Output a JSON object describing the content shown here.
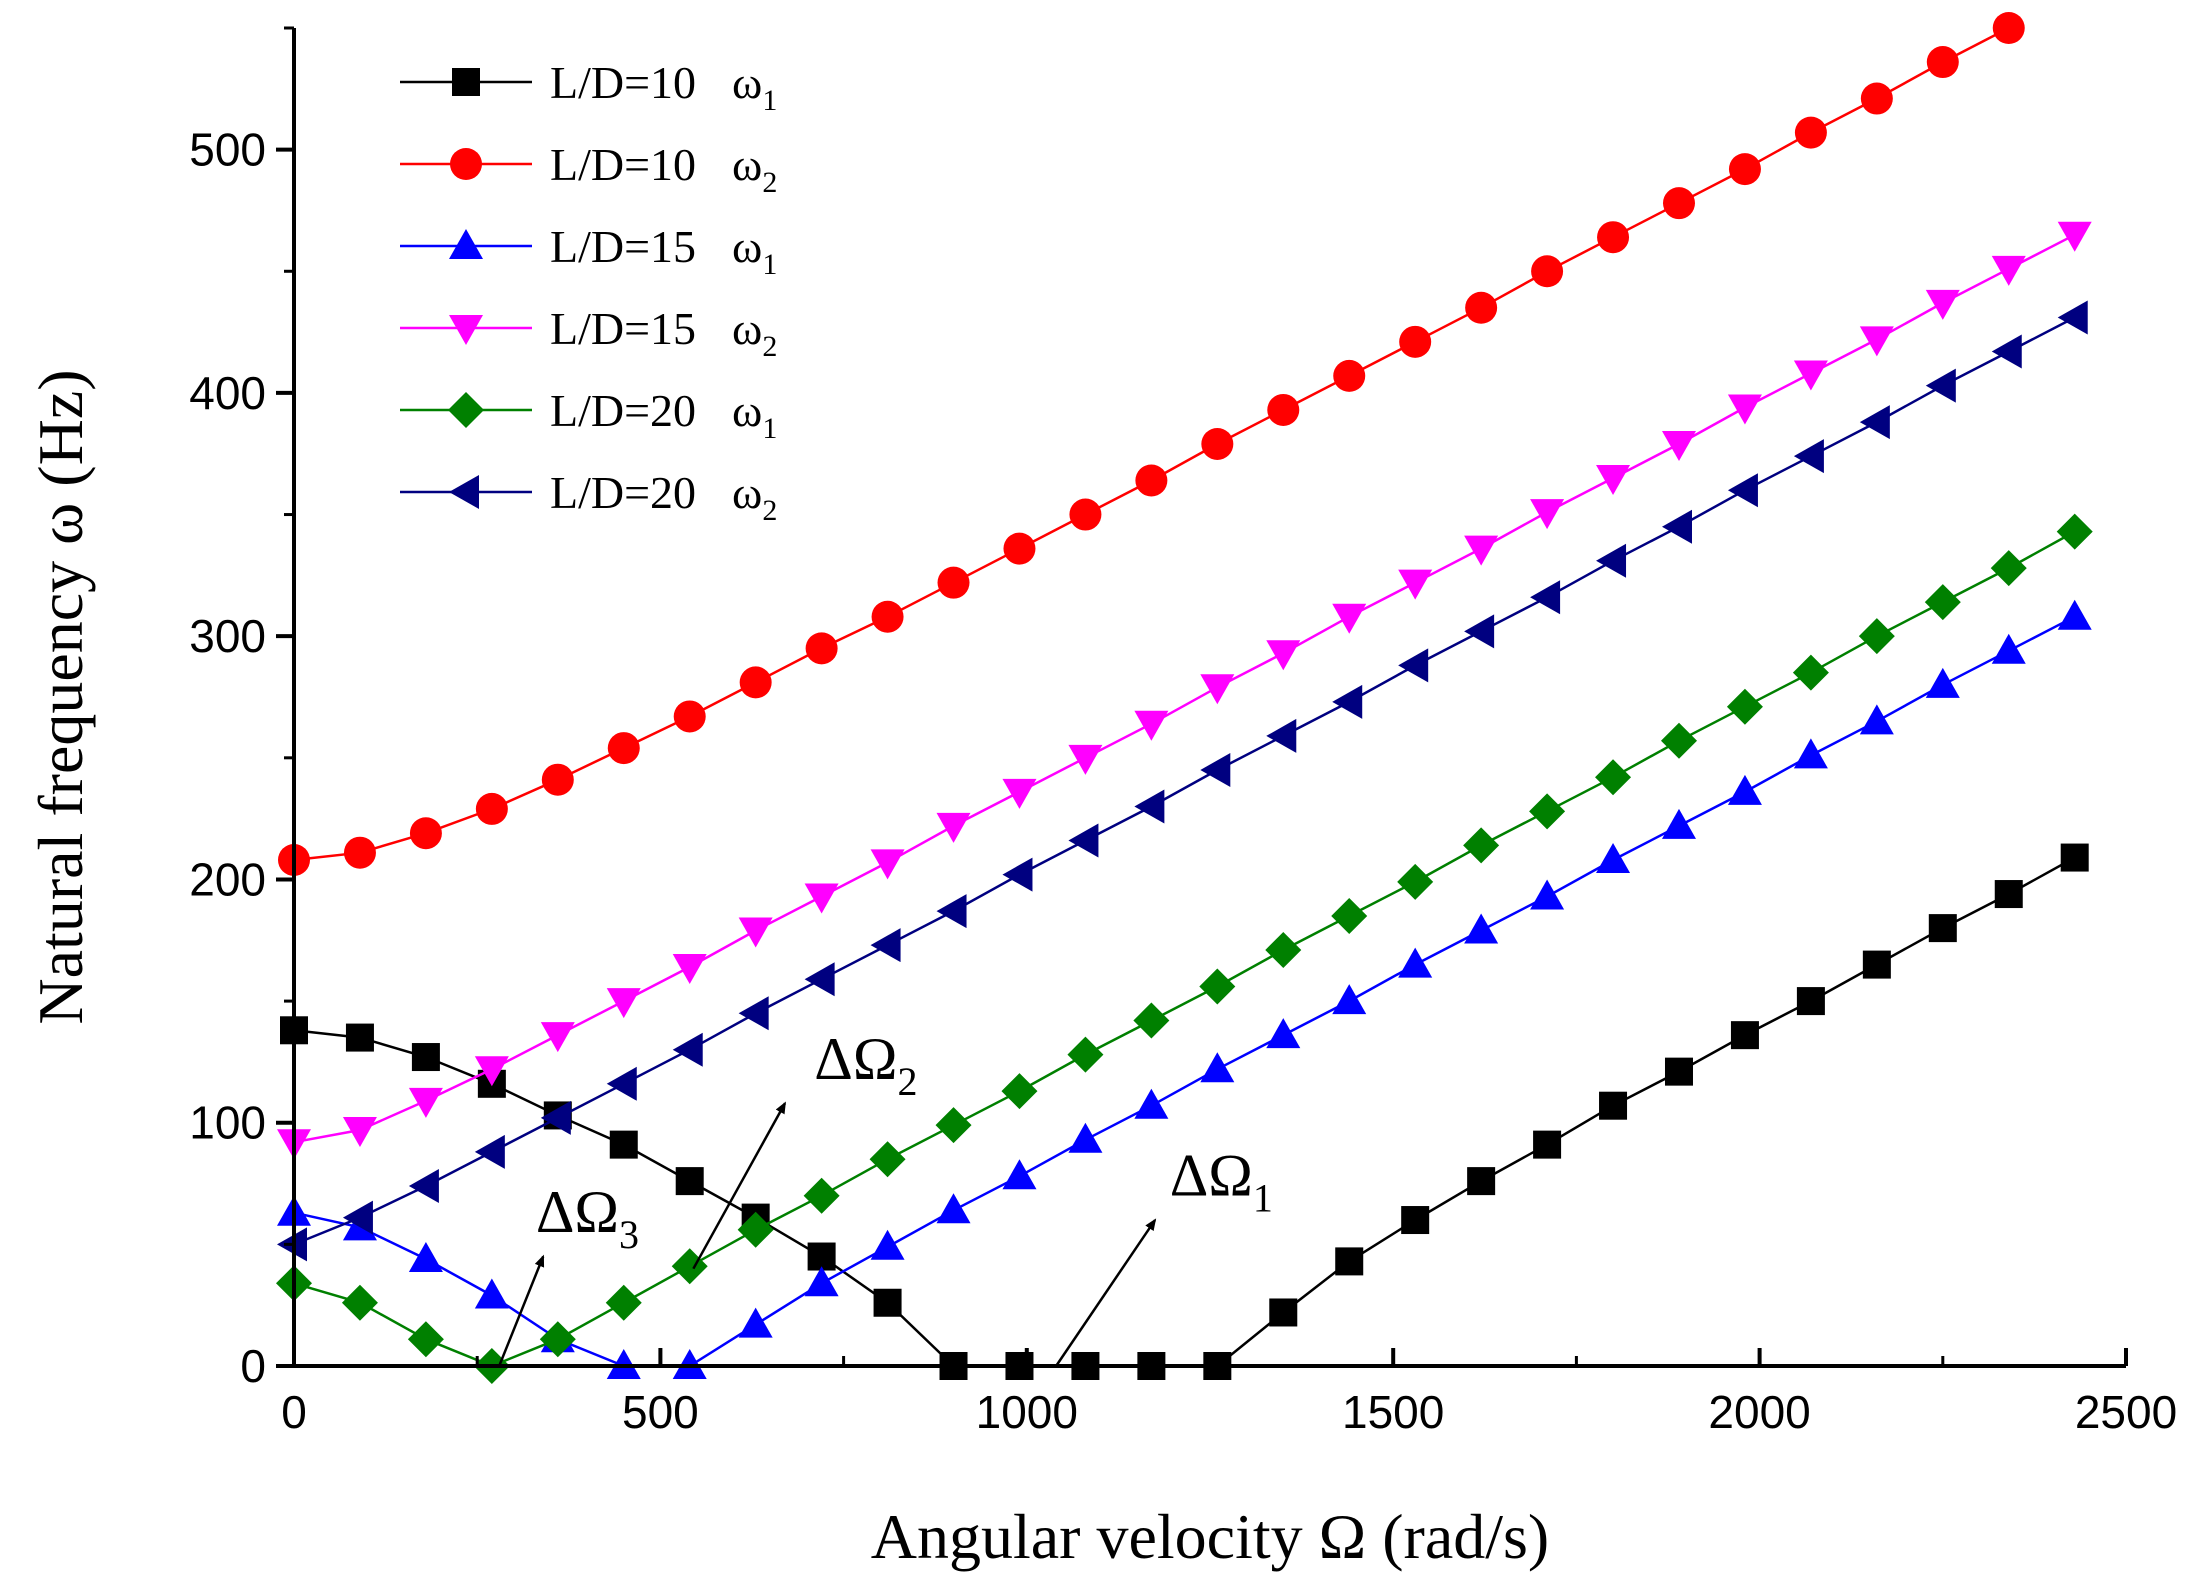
{
  "chart_data": {
    "type": "line",
    "xlabel": "Angular velocity Ω (rad/s)",
    "ylabel": "Natural frequency ω (Hz)",
    "xlim": [
      0,
      2500
    ],
    "ylim": [
      0,
      550
    ],
    "x_ticks": [
      "0",
      "500",
      "1000",
      "1500",
      "2000",
      "2500"
    ],
    "y_ticks": [
      "0",
      "100",
      "200",
      "300",
      "400",
      "500"
    ],
    "grid": false,
    "legend_placement": "top-left",
    "series": [
      {
        "name": "L/D=10",
        "subscript": "1",
        "omega": "ω",
        "color": "#000000",
        "marker": "square",
        "x": [
          0,
          90,
          180,
          270,
          360,
          450,
          540,
          630,
          720,
          810,
          900,
          990,
          1080,
          1170,
          1260,
          1350,
          1440,
          1530,
          1620,
          1710,
          1800,
          1890,
          1980,
          2070,
          2160,
          2250,
          2340,
          2430
        ],
        "y": [
          138,
          135,
          127,
          116,
          103,
          91,
          76,
          61,
          45,
          26,
          0,
          0,
          0,
          0,
          0,
          22,
          43,
          60,
          76,
          91,
          107,
          121,
          136,
          150,
          165,
          180,
          194,
          209
        ]
      },
      {
        "name": "L/D=10",
        "subscript": "2",
        "omega": "ω",
        "color": "#ff0000",
        "marker": "circle",
        "x": [
          0,
          90,
          180,
          270,
          360,
          450,
          540,
          630,
          720,
          810,
          900,
          990,
          1080,
          1170,
          1260,
          1350,
          1440,
          1530,
          1620,
          1710,
          1800,
          1890,
          1980,
          2070,
          2160,
          2250,
          2340
        ],
        "y": [
          208,
          211,
          219,
          229,
          241,
          254,
          267,
          281,
          295,
          308,
          322,
          336,
          350,
          364,
          379,
          393,
          407,
          421,
          435,
          450,
          464,
          478,
          492,
          507,
          521,
          536,
          550
        ]
      },
      {
        "name": "L/D=15",
        "subscript": "1",
        "omega": "ω",
        "color": "#0000ff",
        "marker": "triangle-up",
        "x": [
          0,
          90,
          180,
          270,
          360,
          450,
          540,
          630,
          720,
          810,
          900,
          990,
          1080,
          1170,
          1260,
          1350,
          1440,
          1530,
          1620,
          1710,
          1800,
          1890,
          1980,
          2070,
          2160,
          2250,
          2340,
          2430
        ],
        "y": [
          63,
          57,
          44,
          29,
          11,
          0,
          0,
          17,
          34,
          49,
          64,
          78,
          93,
          107,
          122,
          136,
          150,
          165,
          179,
          193,
          208,
          222,
          236,
          251,
          265,
          280,
          294,
          308
        ]
      },
      {
        "name": "L/D=15",
        "subscript": "2",
        "omega": "ω",
        "color": "#ff00ff",
        "marker": "triangle-down",
        "x": [
          0,
          90,
          180,
          270,
          360,
          450,
          540,
          630,
          720,
          810,
          900,
          990,
          1080,
          1170,
          1260,
          1350,
          1440,
          1530,
          1620,
          1710,
          1800,
          1890,
          1980,
          2070,
          2160,
          2250,
          2340,
          2430
        ],
        "y": [
          92,
          97,
          109,
          122,
          136,
          150,
          164,
          179,
          193,
          207,
          222,
          236,
          250,
          264,
          279,
          293,
          308,
          322,
          336,
          351,
          365,
          379,
          394,
          408,
          422,
          437,
          451,
          465
        ]
      },
      {
        "name": "L/D=20",
        "subscript": "1",
        "omega": "ω",
        "color": "#008000",
        "marker": "diamond",
        "x": [
          0,
          90,
          180,
          270,
          360,
          450,
          540,
          630,
          720,
          810,
          900,
          990,
          1080,
          1170,
          1260,
          1350,
          1440,
          1530,
          1620,
          1710,
          1800,
          1890,
          1980,
          2070,
          2160,
          2250,
          2340,
          2430
        ],
        "y": [
          34,
          26,
          11,
          0,
          11,
          26,
          41,
          56,
          70,
          85,
          99,
          113,
          128,
          142,
          156,
          171,
          185,
          199,
          214,
          228,
          242,
          257,
          271,
          285,
          300,
          314,
          328,
          343
        ]
      },
      {
        "name": "L/D=20",
        "subscript": "2",
        "omega": "ω",
        "color": "#000080",
        "marker": "triangle-left",
        "x": [
          0,
          90,
          180,
          270,
          360,
          450,
          540,
          630,
          720,
          810,
          900,
          990,
          1080,
          1170,
          1260,
          1350,
          1440,
          1530,
          1620,
          1710,
          1800,
          1890,
          1980,
          2070,
          2160,
          2250,
          2340,
          2430
        ],
        "y": [
          50,
          61,
          74,
          88,
          102,
          116,
          130,
          145,
          159,
          173,
          187,
          202,
          216,
          230,
          245,
          259,
          273,
          288,
          302,
          316,
          331,
          345,
          360,
          374,
          388,
          403,
          417,
          431
        ]
      }
    ],
    "annotations": [
      {
        "text": "ΔΩ",
        "subscript": "1",
        "label_x": 1195,
        "label_y": 70,
        "arrow_from": [
          1040,
          0
        ],
        "arrow_to": [
          1175,
          60
        ]
      },
      {
        "text": "ΔΩ",
        "subscript": "2",
        "label_x": 710,
        "label_y": 118,
        "arrow_from": [
          545,
          40
        ],
        "arrow_to": [
          670,
          108
        ]
      },
      {
        "text": "ΔΩ",
        "subscript": "3",
        "label_x": 330,
        "label_y": 55,
        "arrow_from": [
          280,
          0
        ],
        "arrow_to": [
          340,
          45
        ]
      }
    ]
  }
}
